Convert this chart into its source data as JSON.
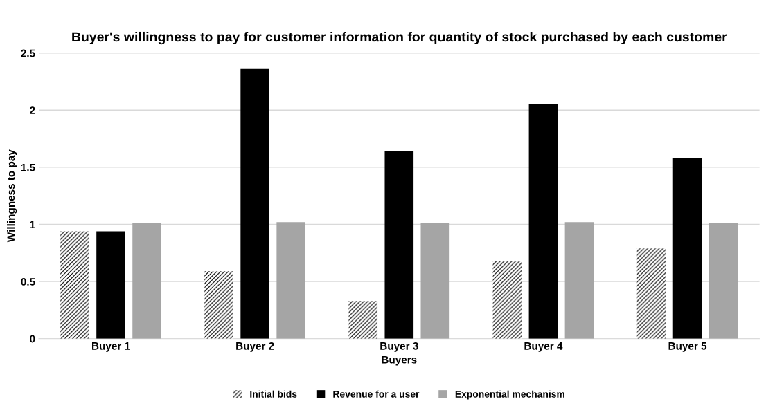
{
  "chart_data": {
    "type": "bar",
    "title": "Buyer's willingness to pay for customer information for quantity of stock purchased by each customer",
    "xlabel": "Buyers",
    "ylabel": "Willingness to pay",
    "categories": [
      "Buyer 1",
      "Buyer 2",
      "Buyer 3",
      "Buyer 4",
      "Buyer 5"
    ],
    "series": [
      {
        "name": "Initial bids",
        "color": "#000000",
        "values": [
          0.94,
          0.59,
          0.33,
          0.68,
          0.79
        ]
      },
      {
        "name": "Revenue for a user",
        "color": "#000000",
        "values": [
          0.94,
          2.36,
          1.64,
          2.05,
          1.58
        ]
      },
      {
        "name": "Exponential mechanism",
        "color": "#a5a5a5",
        "values": [
          1.01,
          1.02,
          1.01,
          1.02,
          1.01
        ]
      }
    ],
    "ylim": [
      0,
      2.5
    ],
    "yticks": [
      0,
      0.5,
      1,
      1.5,
      2,
      2.5
    ],
    "grid": "y",
    "legend": "bottom"
  }
}
